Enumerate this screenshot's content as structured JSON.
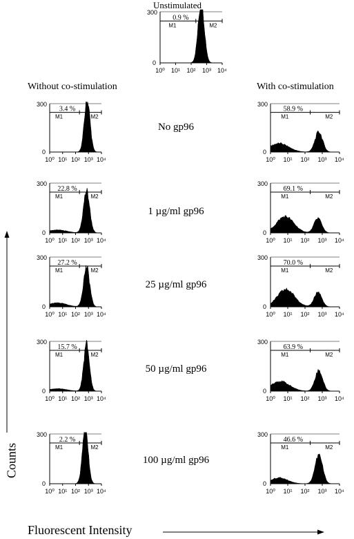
{
  "figure": {
    "top_panel_title": "Unstimulated",
    "left_column_title": "Without co-stimulation",
    "right_column_title": "With co-stimulation",
    "y_axis_label": "Counts",
    "x_axis_label": "Fluorescent Intensity",
    "conditions": [
      "No gp96",
      "1 µg/ml gp96",
      "25 µg/ml gp96",
      "50 µg/ml gp96",
      "100 µg/ml gp96"
    ]
  },
  "chart_data": [
    {
      "type": "area",
      "panel": "Unstimulated",
      "x_scale": "log",
      "xlim": [
        1,
        10000
      ],
      "ylim": [
        0,
        300
      ],
      "x_ticks": [
        "10⁰",
        "10¹",
        "10²",
        "10³",
        "10⁴"
      ],
      "y_ticks": [
        "0",
        "300"
      ],
      "gates": [
        {
          "name": "M1",
          "range": [
            1,
            200
          ]
        },
        {
          "name": "M2",
          "range": [
            200,
            10000
          ]
        }
      ],
      "m1_percent": "0.9 %",
      "peaks": [
        {
          "center_log": 2.65,
          "width": 0.2,
          "height": 1.2
        }
      ]
    },
    {
      "type": "area",
      "panel": "Without co-stimulation / No gp96",
      "x_scale": "log",
      "xlim": [
        1,
        10000
      ],
      "ylim": [
        0,
        300
      ],
      "x_ticks": [
        "10⁰",
        "10¹",
        "10²",
        "10³",
        "10⁴"
      ],
      "y_ticks": [
        "0",
        "300"
      ],
      "gates": [
        {
          "name": "M1",
          "range": [
            1,
            200
          ]
        },
        {
          "name": "M2",
          "range": [
            200,
            10000
          ]
        }
      ],
      "m1_percent": "3.4 %",
      "peaks": [
        {
          "center_log": 2.9,
          "width": 0.22,
          "height": 1.1
        }
      ]
    },
    {
      "type": "area",
      "panel": "With co-stimulation / No gp96",
      "x_scale": "log",
      "xlim": [
        1,
        10000
      ],
      "ylim": [
        0,
        300
      ],
      "x_ticks": [
        "10⁰",
        "10¹",
        "10²",
        "10³",
        "10⁴"
      ],
      "y_ticks": [
        "0",
        "300"
      ],
      "gates": [
        {
          "name": "M1",
          "range": [
            1,
            200
          ]
        },
        {
          "name": "M2",
          "range": [
            200,
            10000
          ]
        }
      ],
      "m1_percent": "58.9 %",
      "peaks": [
        {
          "center_log": 0.5,
          "width": 0.55,
          "height": 0.18
        },
        {
          "center_log": 2.8,
          "width": 0.22,
          "height": 0.42
        }
      ]
    },
    {
      "type": "area",
      "panel": "Without co-stimulation / 1 µg/ml gp96",
      "x_scale": "log",
      "xlim": [
        1,
        10000
      ],
      "ylim": [
        0,
        300
      ],
      "x_ticks": [
        "10⁰",
        "10¹",
        "10²",
        "10³",
        "10⁴"
      ],
      "y_ticks": [
        "0",
        "300"
      ],
      "gates": [
        {
          "name": "M1",
          "range": [
            1,
            200
          ]
        },
        {
          "name": "M2",
          "range": [
            200,
            10000
          ]
        }
      ],
      "m1_percent": "22.8 %",
      "peaks": [
        {
          "center_log": 0.6,
          "width": 0.7,
          "height": 0.06
        },
        {
          "center_log": 2.85,
          "width": 0.24,
          "height": 0.85
        }
      ]
    },
    {
      "type": "area",
      "panel": "With co-stimulation / 1 µg/ml gp96",
      "x_scale": "log",
      "xlim": [
        1,
        10000
      ],
      "ylim": [
        0,
        300
      ],
      "x_ticks": [
        "10⁰",
        "10¹",
        "10²",
        "10³",
        "10⁴"
      ],
      "y_ticks": [
        "0",
        "300"
      ],
      "gates": [
        {
          "name": "M1",
          "range": [
            1,
            200
          ]
        },
        {
          "name": "M2",
          "range": [
            200,
            10000
          ]
        }
      ],
      "m1_percent": "69.1 %",
      "peaks": [
        {
          "center_log": 0.85,
          "width": 0.5,
          "height": 0.33
        },
        {
          "center_log": 2.75,
          "width": 0.22,
          "height": 0.3
        }
      ]
    },
    {
      "type": "area",
      "panel": "Without co-stimulation / 25 µg/ml gp96",
      "x_scale": "log",
      "xlim": [
        1,
        10000
      ],
      "ylim": [
        0,
        300
      ],
      "x_ticks": [
        "10⁰",
        "10¹",
        "10²",
        "10³",
        "10⁴"
      ],
      "y_ticks": [
        "0",
        "300"
      ],
      "gates": [
        {
          "name": "M1",
          "range": [
            1,
            200
          ]
        },
        {
          "name": "M2",
          "range": [
            200,
            10000
          ]
        }
      ],
      "m1_percent": "27.2 %",
      "peaks": [
        {
          "center_log": 0.6,
          "width": 0.7,
          "height": 0.08
        },
        {
          "center_log": 2.85,
          "width": 0.24,
          "height": 0.8
        }
      ]
    },
    {
      "type": "area",
      "panel": "With co-stimulation / 25 µg/ml gp96",
      "x_scale": "log",
      "xlim": [
        1,
        10000
      ],
      "ylim": [
        0,
        300
      ],
      "x_ticks": [
        "10⁰",
        "10¹",
        "10²",
        "10³",
        "10⁴"
      ],
      "y_ticks": [
        "0",
        "300"
      ],
      "gates": [
        {
          "name": "M1",
          "range": [
            1,
            200
          ]
        },
        {
          "name": "M2",
          "range": [
            200,
            10000
          ]
        }
      ],
      "m1_percent": "70.0 %",
      "peaks": [
        {
          "center_log": 0.9,
          "width": 0.5,
          "height": 0.35
        },
        {
          "center_log": 2.75,
          "width": 0.22,
          "height": 0.3
        }
      ]
    },
    {
      "type": "area",
      "panel": "Without co-stimulation / 50 µg/ml gp96",
      "x_scale": "log",
      "xlim": [
        1,
        10000
      ],
      "ylim": [
        0,
        300
      ],
      "x_ticks": [
        "10⁰",
        "10¹",
        "10²",
        "10³",
        "10⁴"
      ],
      "y_ticks": [
        "0",
        "300"
      ],
      "gates": [
        {
          "name": "M1",
          "range": [
            1,
            200
          ]
        },
        {
          "name": "M2",
          "range": [
            200,
            10000
          ]
        }
      ],
      "m1_percent": "15.7 %",
      "peaks": [
        {
          "center_log": 0.6,
          "width": 0.7,
          "height": 0.05
        },
        {
          "center_log": 2.85,
          "width": 0.22,
          "height": 0.95
        }
      ]
    },
    {
      "type": "area",
      "panel": "With co-stimulation / 50 µg/ml gp96",
      "x_scale": "log",
      "xlim": [
        1,
        10000
      ],
      "ylim": [
        0,
        300
      ],
      "x_ticks": [
        "10⁰",
        "10¹",
        "10²",
        "10³",
        "10⁴"
      ],
      "y_ticks": [
        "0",
        "300"
      ],
      "gates": [
        {
          "name": "M1",
          "range": [
            1,
            200
          ]
        },
        {
          "name": "M2",
          "range": [
            200,
            10000
          ]
        }
      ],
      "m1_percent": "63.9 %",
      "peaks": [
        {
          "center_log": 0.55,
          "width": 0.55,
          "height": 0.2
        },
        {
          "center_log": 2.8,
          "width": 0.22,
          "height": 0.42
        }
      ]
    },
    {
      "type": "area",
      "panel": "Without co-stimulation / 100 µg/ml gp96",
      "x_scale": "log",
      "xlim": [
        1,
        10000
      ],
      "ylim": [
        0,
        300
      ],
      "x_ticks": [
        "10⁰",
        "10¹",
        "10²",
        "10³",
        "10⁴"
      ],
      "y_ticks": [
        "0",
        "300"
      ],
      "gates": [
        {
          "name": "M1",
          "range": [
            1,
            200
          ]
        },
        {
          "name": "M2",
          "range": [
            200,
            10000
          ]
        }
      ],
      "m1_percent": "2.2 %",
      "peaks": [
        {
          "center_log": 2.75,
          "width": 0.22,
          "height": 1.1
        }
      ]
    },
    {
      "type": "area",
      "panel": "With co-stimulation / 100 µg/ml gp96",
      "x_scale": "log",
      "xlim": [
        1,
        10000
      ],
      "ylim": [
        0,
        300
      ],
      "x_ticks": [
        "10⁰",
        "10¹",
        "10²",
        "10³",
        "10⁴"
      ],
      "y_ticks": [
        "0",
        "300"
      ],
      "gates": [
        {
          "name": "M1",
          "range": [
            1,
            200
          ]
        },
        {
          "name": "M2",
          "range": [
            200,
            10000
          ]
        }
      ],
      "m1_percent": "46.6 %",
      "peaks": [
        {
          "center_log": 0.5,
          "width": 0.5,
          "height": 0.12
        },
        {
          "center_log": 2.8,
          "width": 0.22,
          "height": 0.58
        }
      ]
    }
  ]
}
